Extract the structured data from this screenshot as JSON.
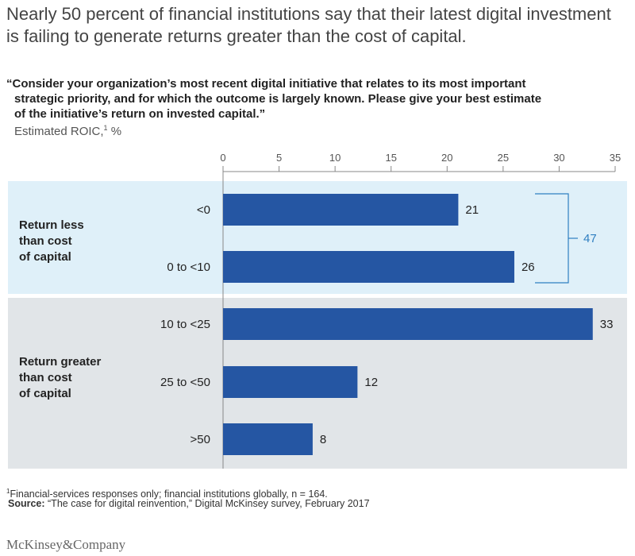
{
  "headline": "Nearly 50 percent of financial institutions say that their latest digital investment is failing to generate returns greater than the cost of capital.",
  "question": {
    "line1": "“Consider your organization’s most recent digital initiative that relates to its most important",
    "line2": "strategic priority, and for which the outcome is largely known. Please give your best estimate",
    "line3": "of the initiative’s return on invested capital.”"
  },
  "unit": {
    "label": "Estimated ROIC,",
    "footnote_mark": "1",
    "suffix": " %"
  },
  "chart_data": {
    "type": "bar",
    "orientation": "horizontal",
    "categories": [
      "<0",
      "0 to <10",
      "10 to <25",
      "25 to <50",
      ">50"
    ],
    "values": [
      21,
      26,
      33,
      12,
      8
    ],
    "xlim": [
      0,
      35
    ],
    "ticks": [
      0,
      5,
      10,
      15,
      20,
      25,
      30,
      35
    ],
    "bar_color": "#2556a3",
    "groups": [
      {
        "label_lines": [
          "Return less",
          "than cost",
          "of capital"
        ],
        "categories": [
          "<0",
          "0 to <10"
        ],
        "background": "#dff0f9",
        "total": 47
      },
      {
        "label_lines": [
          "Return greater",
          "than cost",
          "of capital"
        ],
        "categories": [
          "10 to <25",
          "25 to <50",
          ">50"
        ],
        "background": "#e1e5e8"
      }
    ],
    "bracket_color": "#2f7fc1"
  },
  "footnote": {
    "mark": "1",
    "text": "Financial-services responses only; financial institutions globally, n = 164."
  },
  "source": {
    "label": "Source:",
    "text": " “The case for digital reinvention,” Digital McKinsey survey, February 2017"
  },
  "logo": "McKinsey&Company"
}
